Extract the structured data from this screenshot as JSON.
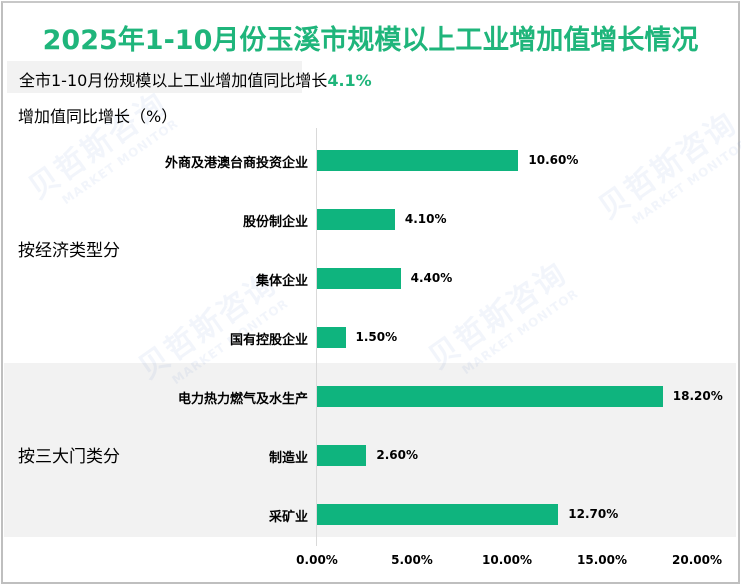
{
  "title": "2025年1-10月份玉溪市规模以上工业增加值增长情况",
  "subtitle": {
    "text": "全市1-10月份规模以上工业增加值同比增长",
    "highlight": "4.1%"
  },
  "watermark": {
    "cn": "贝哲斯咨询",
    "en": "MARKET MONITOR"
  },
  "colors": {
    "title": "#1fb57b",
    "bar": "#0fb47e",
    "band": "#f2f2f2"
  },
  "chart_data": {
    "type": "bar",
    "orientation": "horizontal",
    "title": "2025年1-10月份玉溪市规模以上工业增加值增长情况",
    "subtitle": "全市1-10月份规模以上工业增加值同比增长4.1%",
    "ylabel": "增加值同比增长（%）",
    "xlabel": "",
    "xlim": [
      0,
      20
    ],
    "xticks": [
      "0.00%",
      "5.00%",
      "10.00%",
      "15.00%",
      "20.00%"
    ],
    "groups": [
      {
        "name": "按经济类型分",
        "categories": [
          "外商及港澳台商投资企业",
          "股份制企业",
          "集体企业",
          "国有控股企业"
        ],
        "values": [
          10.6,
          4.1,
          4.4,
          1.5
        ],
        "labels": [
          "10.60%",
          "4.10%",
          "4.40%",
          "1.50%"
        ]
      },
      {
        "name": "按三大门类分",
        "categories": [
          "电力热力燃气及水生产",
          "制造业",
          "采矿业"
        ],
        "values": [
          18.2,
          2.6,
          12.7
        ],
        "labels": [
          "18.20%",
          "2.60%",
          "12.70%"
        ]
      }
    ],
    "grid": false,
    "legend": "none"
  }
}
